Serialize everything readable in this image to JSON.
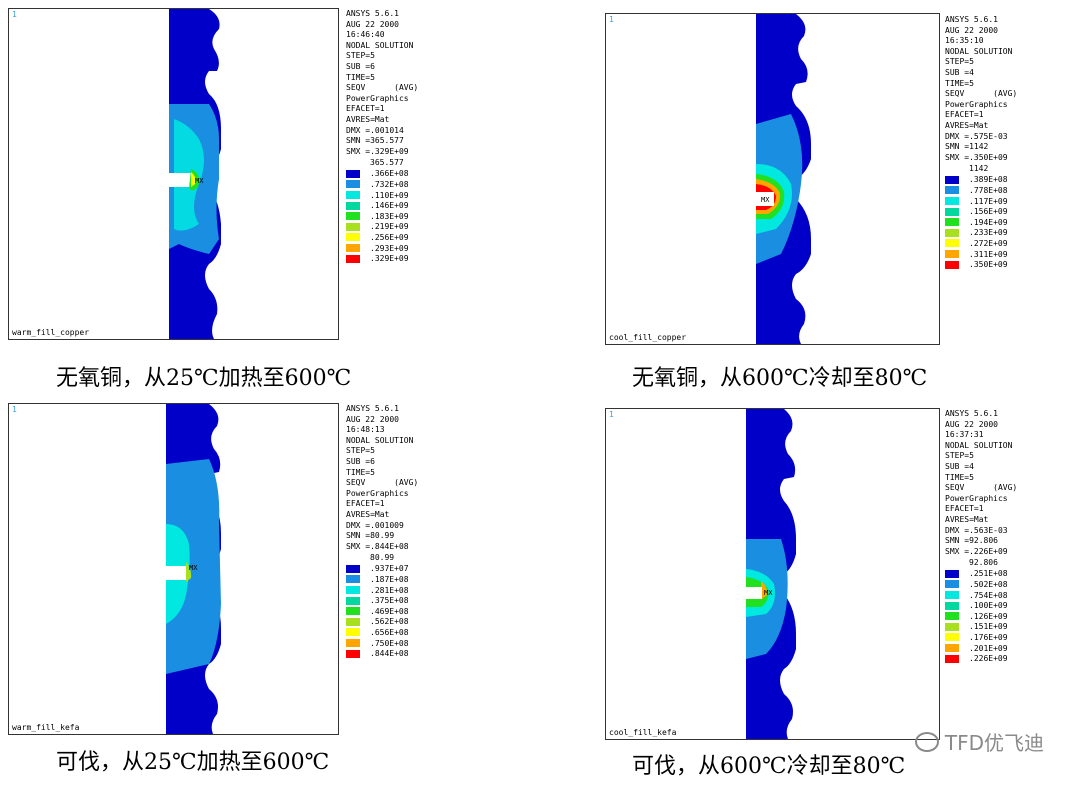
{
  "palette": [
    "#0000c8",
    "#1a8ee0",
    "#00e8e0",
    "#00d8a0",
    "#20e020",
    "#a8e020",
    "#ffff00",
    "#ffa500",
    "#ff0000"
  ],
  "panels": [
    {
      "label": "warm_fill_copper",
      "corner": "1",
      "info": [
        "ANSYS 5.6.1",
        "AUG 22 2000",
        "16:46:40",
        "NODAL SOLUTION",
        "STEP=5",
        "SUB =6",
        "TIME=5",
        "SEQV      (AVG)",
        "PowerGraphics",
        "EFACET=1",
        "AVRES=Mat",
        "DMX =.001014",
        "SMN =365.577",
        "SMX =.329E+09"
      ],
      "legend_min": "365.577",
      "legend": [
        ".366E+08",
        ".732E+08",
        ".110E+09",
        ".146E+09",
        ".183E+09",
        ".219E+09",
        ".256E+09",
        ".293E+09",
        ".329E+09"
      ],
      "mx": "MX",
      "caption": "无氧铜，从25℃加热至600℃"
    },
    {
      "label": "cool_fill_copper",
      "corner": "1",
      "info": [
        "ANSYS 5.6.1",
        "AUG 22 2000",
        "16:35:10",
        "NODAL SOLUTION",
        "STEP=5",
        "SUB =4",
        "TIME=5",
        "SEQV      (AVG)",
        "PowerGraphics",
        "EFACET=1",
        "AVRES=Mat",
        "DMX =.575E-03",
        "SMN =1142",
        "SMX =.350E+09"
      ],
      "legend_min": "1142",
      "legend": [
        ".389E+08",
        ".778E+08",
        ".117E+09",
        ".156E+09",
        ".194E+09",
        ".233E+09",
        ".272E+09",
        ".311E+09",
        ".350E+09"
      ],
      "mx": "MX",
      "caption": "无氧铜，从600℃冷却至80℃"
    },
    {
      "label": "warm_fill_kefa",
      "corner": "1",
      "info": [
        "ANSYS 5.6.1",
        "AUG 22 2000",
        "16:48:13",
        "NODAL SOLUTION",
        "STEP=5",
        "SUB =6",
        "TIME=5",
        "SEQV      (AVG)",
        "PowerGraphics",
        "EFACET=1",
        "AVRES=Mat",
        "DMX =.001009",
        "SMN =80.99",
        "SMX =.844E+08"
      ],
      "legend_min": "80.99",
      "legend": [
        ".937E+07",
        ".187E+08",
        ".281E+08",
        ".375E+08",
        ".469E+08",
        ".562E+08",
        ".656E+08",
        ".750E+08",
        ".844E+08"
      ],
      "mx": "MX",
      "caption": "可伐，从25℃加热至600℃"
    },
    {
      "label": "cool_fill_kefa",
      "corner": "1",
      "info": [
        "ANSYS 5.6.1",
        "AUG 22 2000",
        "16:37:31",
        "NODAL SOLUTION",
        "STEP=5",
        "SUB =4",
        "TIME=5",
        "SEQV      (AVG)",
        "PowerGraphics",
        "EFACET=1",
        "AVRES=Mat",
        "DMX =.563E-03",
        "SMN =92.806",
        "SMX =.226E+09"
      ],
      "legend_min": "92.806",
      "legend": [
        ".251E+08",
        ".502E+08",
        ".754E+08",
        ".100E+09",
        ".126E+09",
        ".151E+09",
        ".176E+09",
        ".201E+09",
        ".226E+09"
      ],
      "mx": "MX",
      "caption": "可伐，从600℃冷却至80℃"
    }
  ],
  "watermark": "TFD优飞迪"
}
